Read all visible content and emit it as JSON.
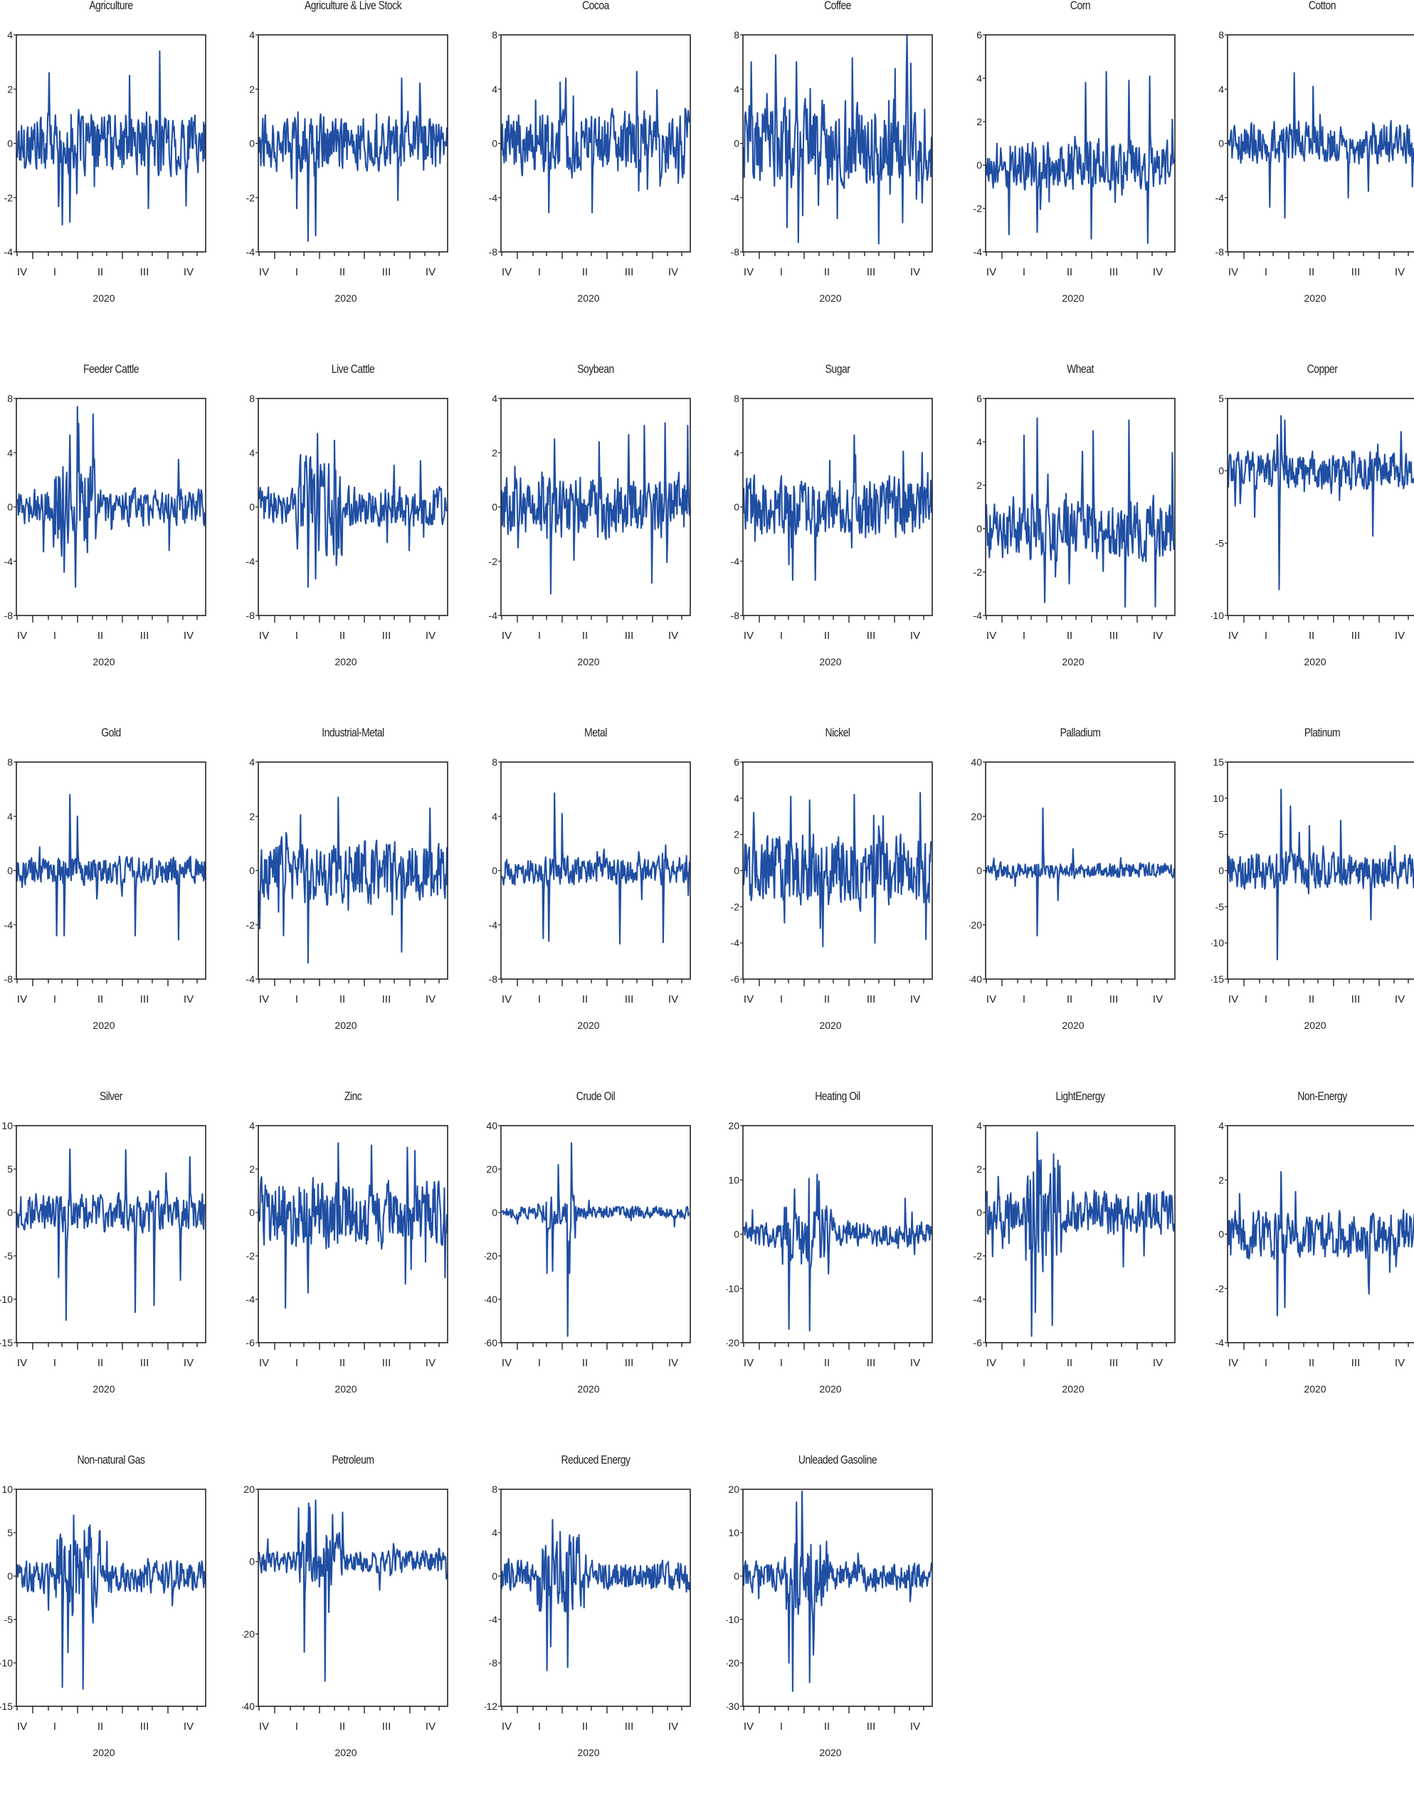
{
  "figure": {
    "line_color": "#1f4ea3",
    "axis_color": "#222222",
    "x_axis": {
      "quarter_labels": [
        "IV",
        "I",
        "II",
        "III",
        "IV"
      ],
      "year_label": "2020"
    }
  },
  "chart_data": [
    {
      "type": "line",
      "title": "Agriculture",
      "yticks": [
        4,
        2,
        0,
        -2,
        -4
      ],
      "ylim": [
        -4,
        4
      ],
      "peaks": [
        [
          0.17,
          2.6
        ],
        [
          0.24,
          -3.0
        ],
        [
          0.28,
          -2.9
        ],
        [
          0.76,
          3.4
        ],
        [
          0.7,
          -2.4
        ],
        [
          0.9,
          -2.3
        ],
        [
          0.6,
          2.5
        ]
      ],
      "amp": 0.8
    },
    {
      "type": "line",
      "title": "Agriculture & Live Stock",
      "yticks": [
        4,
        2,
        0,
        -2,
        -4
      ],
      "ylim": [
        -4,
        4
      ],
      "peaks": [
        [
          0.26,
          2.8
        ],
        [
          0.26,
          -3.6
        ],
        [
          0.3,
          -3.4
        ],
        [
          0.76,
          2.4
        ],
        [
          0.74,
          -2.1
        ],
        [
          0.2,
          -2.4
        ]
      ],
      "amp": 0.7
    },
    {
      "type": "line",
      "title": "Cocoa",
      "yticks": [
        8,
        4,
        0,
        -4,
        -8
      ],
      "ylim": [
        -8,
        8
      ],
      "peaks": [
        [
          0.25,
          -5.1
        ],
        [
          0.34,
          4.8
        ],
        [
          0.48,
          -5.1
        ],
        [
          0.72,
          5.3
        ],
        [
          0.73,
          -3.5
        ],
        [
          0.31,
          4.5
        ]
      ],
      "amp": 1.6
    },
    {
      "type": "line",
      "title": "Coffee",
      "yticks": [
        8,
        4,
        0,
        -4,
        -8
      ],
      "ylim": [
        -8,
        8
      ],
      "peaks": [
        [
          0.04,
          6.0
        ],
        [
          0.23,
          -6.2
        ],
        [
          0.29,
          -7.3
        ],
        [
          0.58,
          6.3
        ],
        [
          0.72,
          -7.4
        ],
        [
          0.89,
          5.9
        ],
        [
          0.28,
          6.0
        ],
        [
          0.92,
          -4.1
        ]
      ],
      "amp": 2.2
    },
    {
      "type": "line",
      "title": "Corn",
      "yticks": [
        6,
        4,
        2,
        0,
        -2,
        -4
      ],
      "ylim": [
        -4,
        6
      ],
      "peaks": [
        [
          0.12,
          3.6
        ],
        [
          0.12,
          -3.2
        ],
        [
          0.27,
          3.0
        ],
        [
          0.27,
          -3.1
        ],
        [
          0.53,
          3.8
        ],
        [
          0.56,
          -3.4
        ],
        [
          0.64,
          4.3
        ],
        [
          0.76,
          3.9
        ],
        [
          0.86,
          -3.6
        ],
        [
          0.87,
          4.1
        ],
        [
          0.99,
          2.1
        ]
      ],
      "amp": 0.8
    },
    {
      "type": "line",
      "title": "Cotton",
      "yticks": [
        8,
        4,
        0,
        -4,
        -8
      ],
      "ylim": [
        -8,
        8
      ],
      "peaks": [
        [
          0.3,
          -5.5
        ],
        [
          0.35,
          5.2
        ],
        [
          0.22,
          -4.7
        ],
        [
          0.45,
          4.2
        ],
        [
          0.64,
          -4.0
        ],
        [
          0.98,
          -3.2
        ]
      ],
      "amp": 1.1
    },
    {
      "type": "line",
      "title": "Feeder Cattle",
      "yticks": [
        8,
        4,
        0,
        -4,
        -8
      ],
      "ylim": [
        -8,
        8
      ],
      "peaks": [
        [
          0.32,
          7.4
        ],
        [
          0.31,
          -5.9
        ],
        [
          0.28,
          5.3
        ],
        [
          0.25,
          -4.8
        ],
        [
          0.86,
          3.5
        ],
        [
          0.81,
          -3.2
        ],
        [
          0.14,
          -3.3
        ]
      ],
      "amp": 0.9,
      "burst": [
        0.2,
        0.42
      ]
    },
    {
      "type": "line",
      "title": "Live Cattle",
      "yticks": [
        8,
        4,
        0,
        -4,
        -8
      ],
      "ylim": [
        -8,
        8
      ],
      "peaks": [
        [
          0.31,
          5.4
        ],
        [
          0.26,
          -5.9
        ],
        [
          0.3,
          -5.3
        ],
        [
          0.4,
          4.9
        ],
        [
          0.86,
          3.4
        ],
        [
          0.8,
          -3.2
        ]
      ],
      "amp": 1.0,
      "burst": [
        0.2,
        0.45
      ]
    },
    {
      "type": "line",
      "title": "Soybean",
      "yticks": [
        4,
        2,
        0,
        -2,
        -4
      ],
      "ylim": [
        -4,
        4
      ],
      "peaks": [
        [
          0.26,
          -3.2
        ],
        [
          0.28,
          2.5
        ],
        [
          0.52,
          2.4
        ],
        [
          0.76,
          3.0
        ],
        [
          0.8,
          -2.8
        ],
        [
          0.87,
          3.1
        ],
        [
          0.99,
          3.0
        ]
      ],
      "amp": 0.8
    },
    {
      "type": "line",
      "title": "Sugar",
      "yticks": [
        8,
        4,
        0,
        -4,
        -8
      ],
      "ylim": [
        -8,
        8
      ],
      "peaks": [
        [
          0.26,
          -5.4
        ],
        [
          0.38,
          5.6
        ],
        [
          0.38,
          -5.4
        ],
        [
          0.59,
          5.3
        ],
        [
          0.85,
          4.1
        ],
        [
          0.95,
          4.0
        ]
      ],
      "amp": 1.5
    },
    {
      "type": "line",
      "title": "Wheat",
      "yticks": [
        6,
        4,
        2,
        0,
        -2,
        -4
      ],
      "ylim": [
        -4,
        6
      ],
      "peaks": [
        [
          0.27,
          5.1
        ],
        [
          0.2,
          4.3
        ],
        [
          0.31,
          -3.4
        ],
        [
          0.57,
          4.5
        ],
        [
          0.74,
          -3.6
        ],
        [
          0.76,
          5.0
        ],
        [
          0.9,
          -3.6
        ],
        [
          0.99,
          3.5
        ]
      ],
      "amp": 1.0
    },
    {
      "type": "line",
      "title": "Copper",
      "yticks": [
        5,
        0,
        -5,
        -10
      ],
      "ylim": [
        -10,
        5
      ],
      "peaks": [
        [
          0.27,
          -8.2
        ],
        [
          0.28,
          3.8
        ],
        [
          0.3,
          3.5
        ],
        [
          0.77,
          -4.5
        ],
        [
          0.14,
          -3.2
        ],
        [
          0.92,
          2.7
        ]
      ],
      "amp": 0.9
    },
    {
      "type": "line",
      "title": "Gold",
      "yticks": [
        8,
        4,
        0,
        -4,
        -8
      ],
      "ylim": [
        -8,
        8
      ],
      "peaks": [
        [
          0.28,
          5.6
        ],
        [
          0.21,
          -4.8
        ],
        [
          0.25,
          -4.8
        ],
        [
          0.63,
          -4.8
        ],
        [
          0.86,
          -5.1
        ],
        [
          0.32,
          4.0
        ]
      ],
      "amp": 0.7
    },
    {
      "type": "line",
      "title": "Industrial-Metal",
      "yticks": [
        4,
        2,
        0,
        -2,
        -4
      ],
      "ylim": [
        -4,
        4
      ],
      "peaks": [
        [
          0.26,
          -3.4
        ],
        [
          0.42,
          2.7
        ],
        [
          0.76,
          -3.0
        ],
        [
          0.91,
          2.3
        ],
        [
          0.13,
          -2.4
        ]
      ],
      "amp": 0.8
    },
    {
      "type": "line",
      "title": "Metal",
      "yticks": [
        8,
        4,
        0,
        -4,
        -8
      ],
      "ylim": [
        -8,
        8
      ],
      "peaks": [
        [
          0.28,
          5.7
        ],
        [
          0.22,
          -5.0
        ],
        [
          0.25,
          -5.2
        ],
        [
          0.63,
          -5.4
        ],
        [
          0.86,
          -5.3
        ],
        [
          0.32,
          4.2
        ]
      ],
      "amp": 0.7
    },
    {
      "type": "line",
      "title": "Nickel",
      "yticks": [
        6,
        4,
        2,
        0,
        -2,
        -4,
        -6
      ],
      "ylim": [
        -6,
        6
      ],
      "peaks": [
        [
          0.25,
          -4.9
        ],
        [
          0.25,
          4.1
        ],
        [
          0.42,
          -4.2
        ],
        [
          0.59,
          4.2
        ],
        [
          0.7,
          -4.0
        ],
        [
          0.94,
          4.3
        ],
        [
          0.97,
          -3.8
        ],
        [
          0.35,
          3.9
        ]
      ],
      "amp": 1.4
    },
    {
      "type": "line",
      "title": "Palladium",
      "yticks": [
        40,
        20,
        0,
        -20,
        -40
      ],
      "ylim": [
        -40,
        40
      ],
      "peaks": [
        [
          0.3,
          23
        ],
        [
          0.27,
          -24
        ],
        [
          0.38,
          -11
        ],
        [
          0.46,
          8
        ]
      ],
      "amp": 2.0
    },
    {
      "type": "line",
      "title": "Platinum",
      "yticks": [
        15,
        10,
        5,
        0,
        -5,
        -10,
        -15
      ],
      "ylim": [
        -15,
        15
      ],
      "peaks": [
        [
          0.28,
          11.2
        ],
        [
          0.26,
          -12.3
        ],
        [
          0.33,
          8.9
        ],
        [
          0.6,
          6.9
        ],
        [
          0.43,
          -7.6
        ],
        [
          0.76,
          -6.8
        ],
        [
          0.43,
          6.2
        ]
      ],
      "amp": 1.8
    },
    {
      "type": "line",
      "title": "Silver",
      "yticks": [
        10,
        5,
        0,
        -5,
        -10,
        -15
      ],
      "ylim": [
        -15,
        10
      ],
      "peaks": [
        [
          0.26,
          -12.4
        ],
        [
          0.28,
          7.3
        ],
        [
          0.22,
          -7.5
        ],
        [
          0.58,
          7.2
        ],
        [
          0.63,
          -11.5
        ],
        [
          0.73,
          -10.7
        ],
        [
          0.87,
          -7.8
        ],
        [
          0.92,
          6.4
        ]
      ],
      "amp": 1.5
    },
    {
      "type": "line",
      "title": "Zinc",
      "yticks": [
        4,
        2,
        0,
        -2,
        -4,
        -6
      ],
      "ylim": [
        -6,
        4
      ],
      "peaks": [
        [
          0.14,
          -4.4
        ],
        [
          0.42,
          3.2
        ],
        [
          0.26,
          -3.7
        ],
        [
          0.6,
          3.1
        ],
        [
          0.78,
          -3.3
        ],
        [
          0.99,
          -3.0
        ],
        [
          0.79,
          3.0
        ]
      ],
      "amp": 1.1
    },
    {
      "type": "line",
      "title": "Crude Oil",
      "yticks": [
        40,
        20,
        0,
        -20,
        -40,
        -60
      ],
      "ylim": [
        -60,
        40
      ],
      "peaks": [
        [
          0.35,
          -57
        ],
        [
          0.37,
          32
        ],
        [
          0.24,
          -28
        ],
        [
          0.27,
          22
        ],
        [
          0.3,
          22
        ],
        [
          0.36,
          -28
        ],
        [
          0.27,
          -27
        ]
      ],
      "amp": 2.0,
      "burst": [
        0.22,
        0.4
      ]
    },
    {
      "type": "line",
      "title": "Heating Oil",
      "yticks": [
        20,
        10,
        0,
        -10,
        -20
      ],
      "ylim": [
        -20,
        20
      ],
      "peaks": [
        [
          0.24,
          -17.5
        ],
        [
          0.35,
          -17.8
        ],
        [
          0.39,
          11
        ],
        [
          0.27,
          8.3
        ],
        [
          0.45,
          -7.3
        ],
        [
          0.86,
          6.6
        ]
      ],
      "amp": 1.6,
      "burst": [
        0.2,
        0.48
      ]
    },
    {
      "type": "line",
      "title": "LightEnergy",
      "yticks": [
        4,
        2,
        0,
        -2,
        -4,
        -6
      ],
      "ylim": [
        -6,
        4
      ],
      "peaks": [
        [
          0.27,
          3.7
        ],
        [
          0.24,
          -5.7
        ],
        [
          0.26,
          -4.6
        ],
        [
          0.35,
          -5.2
        ],
        [
          0.73,
          -2.5
        ],
        [
          0.84,
          -2.0
        ],
        [
          0.28,
          2.4
        ]
      ],
      "amp": 0.7,
      "burst": [
        0.2,
        0.4
      ]
    },
    {
      "type": "line",
      "title": "Non-Energy",
      "yticks": [
        4,
        2,
        0,
        -2,
        -4
      ],
      "ylim": [
        -4,
        4
      ],
      "peaks": [
        [
          0.28,
          2.3
        ],
        [
          0.26,
          -3.0
        ],
        [
          0.3,
          -2.7
        ],
        [
          0.75,
          -2.2
        ],
        [
          0.86,
          -1.4
        ]
      ],
      "amp": 0.6
    },
    {
      "type": "line",
      "title": "Non-natural Gas",
      "yticks": [
        10,
        5,
        0,
        -5,
        -10,
        -15
      ],
      "ylim": [
        -15,
        10
      ],
      "peaks": [
        [
          0.24,
          -12.8
        ],
        [
          0.35,
          -13.0
        ],
        [
          0.27,
          7.3
        ],
        [
          0.3,
          7.0
        ],
        [
          0.38,
          5.6
        ],
        [
          0.27,
          -8.8
        ]
      ],
      "amp": 1.3,
      "burst": [
        0.2,
        0.45
      ]
    },
    {
      "type": "line",
      "title": "Petroleum",
      "yticks": [
        20,
        0,
        -20,
        -40
      ],
      "ylim": [
        -40,
        20
      ],
      "peaks": [
        [
          0.24,
          -25
        ],
        [
          0.35,
          -33
        ],
        [
          0.3,
          17
        ],
        [
          0.27,
          15
        ],
        [
          0.39,
          13
        ],
        [
          0.37,
          -14
        ]
      ],
      "amp": 2.2,
      "burst": [
        0.2,
        0.45
      ]
    },
    {
      "type": "line",
      "title": "Reduced Energy",
      "yticks": [
        8,
        4,
        0,
        -4,
        -8,
        -12
      ],
      "ylim": [
        -12,
        8
      ],
      "peaks": [
        [
          0.24,
          -8.7
        ],
        [
          0.35,
          -8.4
        ],
        [
          0.27,
          5.2
        ],
        [
          0.31,
          4.1
        ],
        [
          0.26,
          -6.5
        ],
        [
          0.38,
          3.6
        ]
      ],
      "amp": 1.0,
      "burst": [
        0.2,
        0.45
      ]
    },
    {
      "type": "line",
      "title": "Unleaded Gasoline",
      "yticks": [
        20,
        10,
        0,
        -10,
        -20,
        -30
      ],
      "ylim": [
        -30,
        20
      ],
      "peaks": [
        [
          0.26,
          -26.5
        ],
        [
          0.31,
          19.5
        ],
        [
          0.35,
          19
        ],
        [
          0.35,
          -24.5
        ],
        [
          0.28,
          -24.5
        ],
        [
          0.28,
          17
        ],
        [
          0.24,
          -20
        ]
      ],
      "amp": 2.2,
      "burst": [
        0.2,
        0.45
      ]
    }
  ]
}
